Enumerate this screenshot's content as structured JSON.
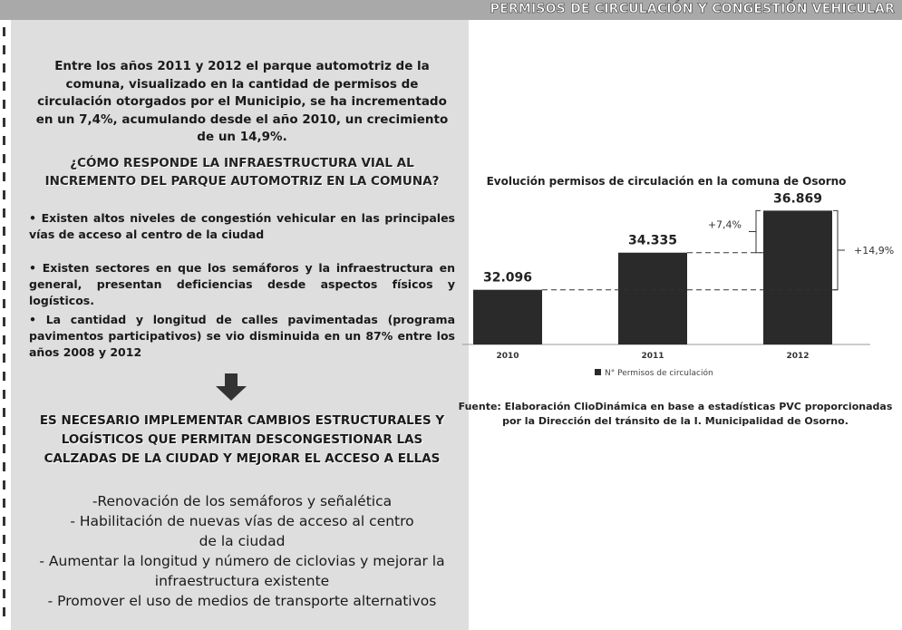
{
  "header": {
    "title": "PERMISOS DE CIRCULACIÓN Y CONGESTIÓN VEHICULAR"
  },
  "intro": "Entre los años 2011 y 2012 el parque automotriz de la comuna, visualizado en la cantidad de permisos de circulación otorgados por el Municipio, se ha incrementado en un 7,4%, acumulando desde el año 2010, un crecimiento de un 14,9%.",
  "question": "¿CÓMO RESPONDE LA INFRAESTRUCTURA VIAL AL INCREMENTO DEL PARQUE AUTOMOTRIZ EN LA COMUNA?",
  "bullets": [
    "• Existen altos niveles de congestión vehicular en las principales vías de acceso al centro de la ciudad",
    "• Existen sectores en que los semáforos y la infraestructura en general, presentan deficiencias desde aspectos físicos y logísticos.",
    "• La cantidad y longitud de calles pavimentadas (programa pavimentos participativos) se vio disminuida en un 87% entre los años 2008 y 2012"
  ],
  "conclusion": "ES NECESARIO IMPLEMENTAR CAMBIOS ESTRUCTURALES Y LOGÍSTICOS QUE PERMITAN DESCONGESTIONAR LAS CALZADAS DE LA CIUDAD Y MEJORAR EL ACCESO A ELLAS",
  "actions": [
    "-Renovación de los semáforos y señalética",
    "- Habilitación de nuevas vías de acceso al centro de la ciudad",
    "- Aumentar la longitud y número de ciclovias y mejorar la infraestructura existente",
    "- Promover el uso de medios de transporte alternativos"
  ],
  "chart_data": {
    "type": "bar",
    "title": "Evolución permisos de circulación en la comuna de Osorno",
    "categories": [
      "2010",
      "2011",
      "2012"
    ],
    "series": [
      {
        "name": "N° Permisos de circulación",
        "color": "#2a2a2a",
        "values": [
          32096,
          34335,
          36869
        ],
        "value_labels": [
          "32.096",
          "34.335",
          "36.869"
        ]
      }
    ],
    "ylim": [
      28800,
      37600
    ],
    "annotations": [
      "+7,4%",
      "+14,9%"
    ],
    "source": "Fuente: Elaboración ClioDinámica en base a estadísticas PVC proporcionadas por la Dirección del tránsito de la I. Municipalidad de Osorno."
  }
}
